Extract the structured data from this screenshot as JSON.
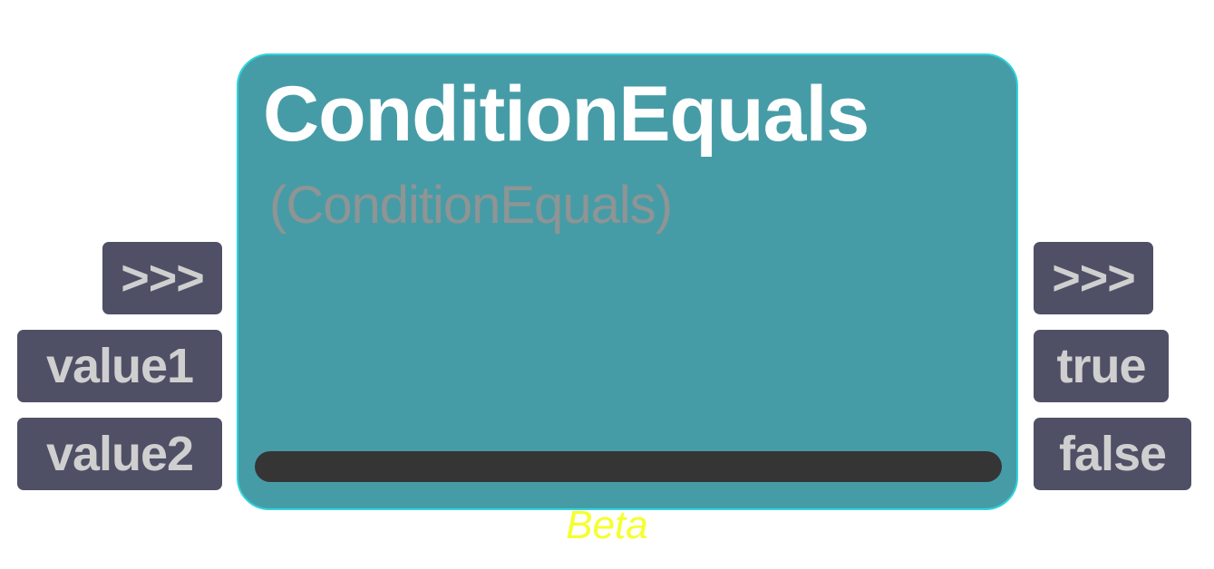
{
  "node": {
    "title": "ConditionEquals",
    "subtitle": "(ConditionEquals)",
    "status_label": "Beta"
  },
  "inputs": [
    {
      "label": ">>>"
    },
    {
      "label": "value1"
    },
    {
      "label": "value2"
    }
  ],
  "outputs": [
    {
      "label": ">>>"
    },
    {
      "label": "true"
    },
    {
      "label": "false"
    }
  ],
  "colors": {
    "node_fill": "#469ca6",
    "node_border": "#2fd3dc",
    "port_fill": "#4f4f66",
    "port_text": "#cfcfcf",
    "bar": "#353536",
    "beta": "#f5ff2e",
    "subtitle": "#8f9494"
  }
}
